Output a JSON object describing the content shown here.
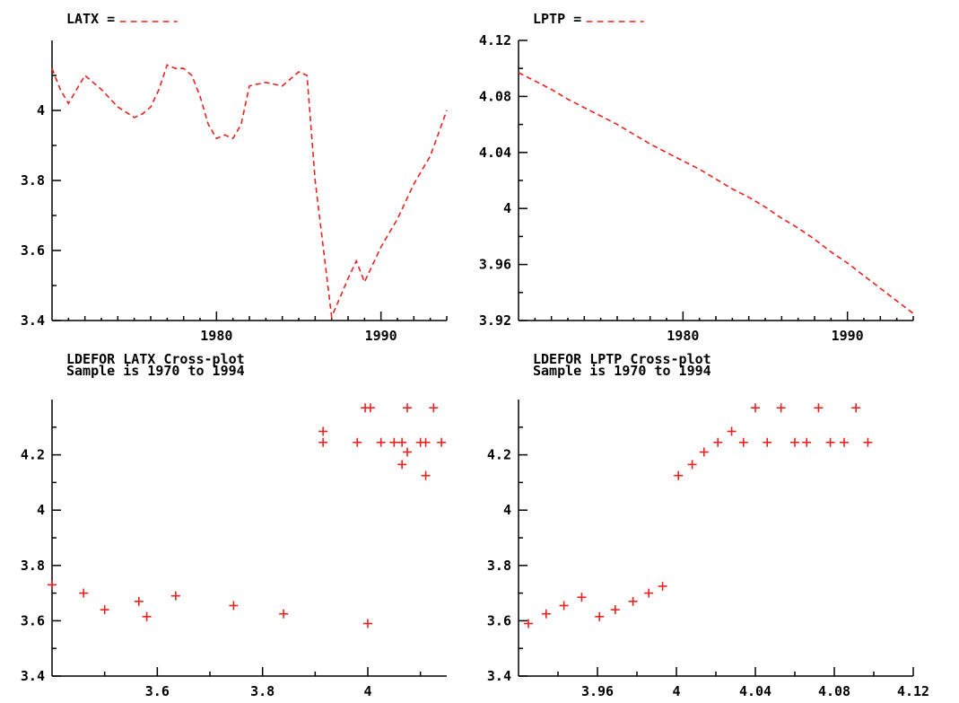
{
  "chart_data": [
    {
      "type": "line",
      "legend": "LATX =",
      "series_color": "#e8231f",
      "line_style": "dashed",
      "x_ticks": [
        1980,
        1990
      ],
      "y_ticks": [
        3.4,
        3.6,
        3.8,
        4
      ],
      "y_tick_labels": [
        "3.4",
        "3.6",
        "3.8",
        "4"
      ],
      "xlim": [
        1970,
        1994
      ],
      "ylim": [
        3.4,
        4.2
      ],
      "x": [
        1970,
        1970.5,
        1971,
        1971.5,
        1972,
        1972.5,
        1973,
        1974,
        1975,
        1975.5,
        1976,
        1976.5,
        1977,
        1977.5,
        1978,
        1978.5,
        1979,
        1979.5,
        1980,
        1980.5,
        1981,
        1981.5,
        1982,
        1983,
        1984,
        1985,
        1985.5,
        1986,
        1987,
        1988,
        1988.5,
        1989,
        1990,
        1991,
        1992,
        1993,
        1994
      ],
      "values": [
        4.12,
        4.06,
        4.02,
        4.06,
        4.1,
        4.08,
        4.06,
        4.01,
        3.98,
        3.99,
        4.01,
        4.06,
        4.13,
        4.12,
        4.12,
        4.1,
        4.04,
        3.96,
        3.92,
        3.93,
        3.92,
        3.96,
        4.07,
        4.08,
        4.07,
        4.11,
        4.1,
        3.8,
        3.41,
        3.52,
        3.57,
        3.51,
        3.61,
        3.69,
        3.79,
        3.87,
        4.0
      ]
    },
    {
      "type": "line",
      "legend": "LPTP =",
      "series_color": "#e8231f",
      "line_style": "dashed",
      "x_ticks": [
        1980,
        1990
      ],
      "y_ticks": [
        3.92,
        3.96,
        4,
        4.04,
        4.08,
        4.12
      ],
      "y_tick_labels": [
        "3.92",
        "3.96",
        "4",
        "4.04",
        "4.08",
        "4.12"
      ],
      "xlim": [
        1970,
        1994
      ],
      "ylim": [
        3.92,
        4.12
      ],
      "x": [
        1970,
        1971,
        1972,
        1973,
        1974,
        1975,
        1976,
        1977,
        1978,
        1979,
        1980,
        1981,
        1982,
        1983,
        1984,
        1985,
        1986,
        1987,
        1988,
        1989,
        1990,
        1991,
        1992,
        1993,
        1994
      ],
      "values": [
        4.097,
        4.091,
        4.085,
        4.078,
        4.072,
        4.066,
        4.06,
        4.053,
        4.046,
        4.04,
        4.034,
        4.028,
        4.021,
        4.014,
        4.008,
        4.001,
        3.993,
        3.986,
        3.978,
        3.969,
        3.961,
        3.952,
        3.943,
        3.934,
        3.925
      ]
    },
    {
      "type": "scatter",
      "title": "LDEFOR LATX Cross-plot",
      "subtitle": "Sample is 1970 to 1994",
      "marker": "+",
      "series_color": "#e8231f",
      "x_ticks": [
        3.6,
        3.8,
        4
      ],
      "x_tick_labels": [
        "3.6",
        "3.8",
        "4"
      ],
      "y_ticks": [
        3.4,
        3.6,
        3.8,
        4,
        4.2
      ],
      "y_tick_labels": [
        "3.4",
        "3.6",
        "3.8",
        "4",
        "4.2"
      ],
      "xlim": [
        3.4,
        4.15
      ],
      "ylim": [
        3.4,
        4.4
      ],
      "points": [
        [
          3.4,
          3.73
        ],
        [
          3.46,
          3.7
        ],
        [
          3.5,
          3.64
        ],
        [
          3.565,
          3.67
        ],
        [
          3.58,
          3.615
        ],
        [
          3.635,
          3.69
        ],
        [
          3.745,
          3.655
        ],
        [
          3.84,
          3.625
        ],
        [
          4.0,
          3.59
        ],
        [
          3.915,
          4.285
        ],
        [
          3.915,
          4.245
        ],
        [
          3.98,
          4.245
        ],
        [
          3.995,
          4.37
        ],
        [
          4.005,
          4.37
        ],
        [
          4.025,
          4.245
        ],
        [
          4.05,
          4.245
        ],
        [
          4.065,
          4.245
        ],
        [
          4.065,
          4.165
        ],
        [
          4.075,
          4.37
        ],
        [
          4.075,
          4.21
        ],
        [
          4.1,
          4.245
        ],
        [
          4.11,
          4.245
        ],
        [
          4.11,
          4.125
        ],
        [
          4.125,
          4.37
        ],
        [
          4.14,
          4.245
        ]
      ]
    },
    {
      "type": "scatter",
      "title": "LDEFOR LPTP  Cross-plot",
      "subtitle": "Sample is 1970 to 1994",
      "marker": "+",
      "series_color": "#e8231f",
      "x_ticks": [
        3.96,
        4,
        4.04,
        4.08,
        4.12
      ],
      "x_tick_labels": [
        "3.96",
        "4",
        "4.04",
        "4.08",
        "4.12"
      ],
      "y_ticks": [
        3.4,
        3.6,
        3.8,
        4,
        4.2
      ],
      "y_tick_labels": [
        "3.4",
        "3.6",
        "3.8",
        "4",
        "4.2"
      ],
      "xlim": [
        3.92,
        4.12
      ],
      "ylim": [
        3.4,
        4.4
      ],
      "points": [
        [
          3.925,
          3.59
        ],
        [
          3.934,
          3.625
        ],
        [
          3.943,
          3.655
        ],
        [
          3.952,
          3.685
        ],
        [
          3.961,
          3.615
        ],
        [
          3.969,
          3.64
        ],
        [
          3.978,
          3.67
        ],
        [
          3.986,
          3.7
        ],
        [
          3.993,
          3.725
        ],
        [
          4.001,
          4.125
        ],
        [
          4.008,
          4.165
        ],
        [
          4.014,
          4.21
        ],
        [
          4.021,
          4.245
        ],
        [
          4.028,
          4.285
        ],
        [
          4.034,
          4.245
        ],
        [
          4.04,
          4.37
        ],
        [
          4.046,
          4.245
        ],
        [
          4.053,
          4.37
        ],
        [
          4.06,
          4.245
        ],
        [
          4.066,
          4.245
        ],
        [
          4.072,
          4.37
        ],
        [
          4.078,
          4.245
        ],
        [
          4.085,
          4.245
        ],
        [
          4.091,
          4.37
        ],
        [
          4.097,
          4.245
        ]
      ]
    }
  ]
}
